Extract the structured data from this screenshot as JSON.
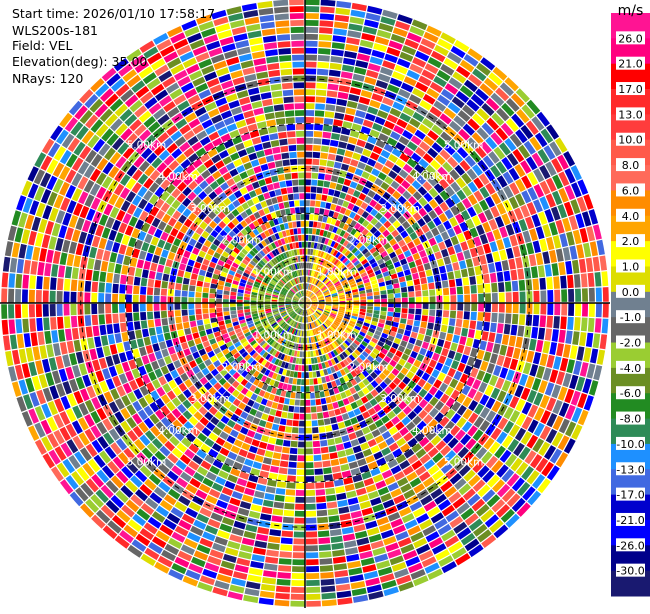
{
  "header": {
    "start_time": "Start time: 2026/01/10 17:58:17",
    "instrument": "WLS200s-181",
    "field": "Field: VEL",
    "elevation": "Elevation(deg): 35.00",
    "nrays": "NRays: 120"
  },
  "chart_data": {
    "type": "heatmap",
    "projection": "polar-ppi",
    "field": "VEL",
    "n_rays": 120,
    "elevation_deg": 35.0,
    "range_rings_km": [
      1,
      2,
      3,
      4,
      5
    ],
    "ring_labels": [
      "1.00km",
      "2.00km",
      "3.00km",
      "4.00km",
      "5.00km"
    ],
    "max_range_km": 6.8,
    "colorbar": {
      "unit": "m/s",
      "tick_labels": [
        "26.0",
        "21.0",
        "17.0",
        "13.0",
        "10.0",
        "8.0",
        "6.0",
        "4.0",
        "2.0",
        "1.0",
        "0.0",
        "-1.0",
        "-2.0",
        "-4.0",
        "-6.0",
        "-8.0",
        "-10.0",
        "-13.0",
        "-17.0",
        "-21.0",
        "-26.0",
        "-30.0"
      ],
      "colors": [
        "#ff1493",
        "#ff007f",
        "#ff0000",
        "#ff2a2a",
        "#ff3c3c",
        "#ff5a4a",
        "#ff6a5a",
        "#ff8c00",
        "#ffa500",
        "#ffff00",
        "#dddd00",
        "#708090",
        "#666666",
        "#9acd32",
        "#6b8e23",
        "#228b22",
        "#2e8b57",
        "#1e90ff",
        "#4169e1",
        "#0000cd",
        "#0000ff",
        "#00008b",
        "#191970"
      ]
    }
  }
}
